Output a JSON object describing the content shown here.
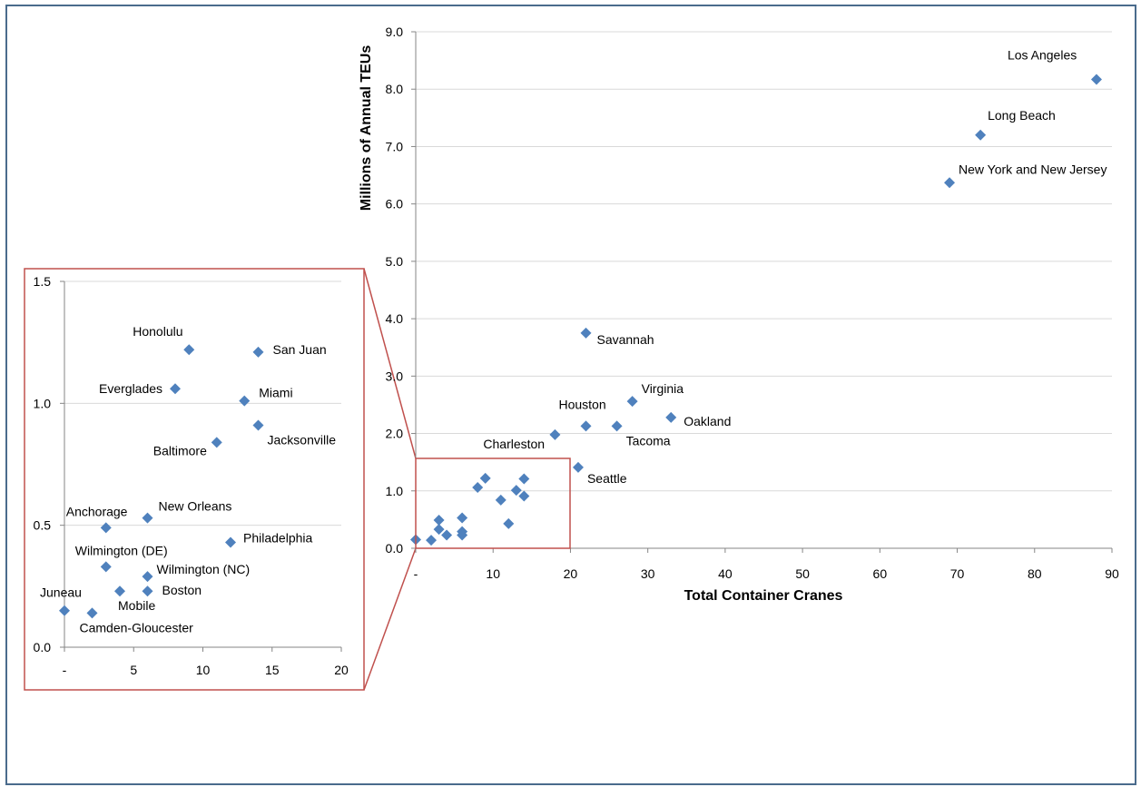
{
  "chart_data": [
    {
      "type": "scatter",
      "title": "",
      "xlabel": "Total Container Cranes",
      "ylabel": "Millions of Annual TEUs",
      "xlim": [
        0,
        90
      ],
      "ylim": [
        0,
        9
      ],
      "x_ticks": [
        "-",
        "10",
        "20",
        "30",
        "40",
        "50",
        "60",
        "70",
        "80",
        "90"
      ],
      "y_ticks": [
        "0.0",
        "1.0",
        "2.0",
        "3.0",
        "4.0",
        "5.0",
        "6.0",
        "7.0",
        "8.0",
        "9.0"
      ],
      "grid": "horizontal",
      "marker_color": "#4f81bd",
      "points": [
        {
          "label": "Los Angeles",
          "x": 88,
          "y": 8.17
        },
        {
          "label": "Long Beach",
          "x": 73,
          "y": 7.2
        },
        {
          "label": "New York and New Jersey",
          "x": 69,
          "y": 6.37
        },
        {
          "label": "Savannah",
          "x": 22,
          "y": 3.75
        },
        {
          "label": "Virginia",
          "x": 28,
          "y": 2.56
        },
        {
          "label": "Houston",
          "x": 22,
          "y": 2.13
        },
        {
          "label": "Oakland",
          "x": 33,
          "y": 2.28
        },
        {
          "label": "Tacoma",
          "x": 26,
          "y": 2.13
        },
        {
          "label": "Charleston",
          "x": 18,
          "y": 1.98
        },
        {
          "label": "Seattle",
          "x": 21,
          "y": 1.41
        },
        {
          "label": "",
          "x": 9,
          "y": 1.22
        },
        {
          "label": "",
          "x": 14,
          "y": 1.21
        },
        {
          "label": "",
          "x": 8,
          "y": 1.06
        },
        {
          "label": "",
          "x": 13,
          "y": 1.01
        },
        {
          "label": "",
          "x": 14,
          "y": 0.91
        },
        {
          "label": "",
          "x": 11,
          "y": 0.84
        },
        {
          "label": "",
          "x": 3,
          "y": 0.49
        },
        {
          "label": "",
          "x": 6,
          "y": 0.53
        },
        {
          "label": "",
          "x": 12,
          "y": 0.43
        },
        {
          "label": "",
          "x": 3,
          "y": 0.33
        },
        {
          "label": "",
          "x": 6,
          "y": 0.29
        },
        {
          "label": "",
          "x": 4,
          "y": 0.23
        },
        {
          "label": "",
          "x": 6,
          "y": 0.23
        },
        {
          "label": "",
          "x": 0,
          "y": 0.15
        },
        {
          "label": "",
          "x": 2,
          "y": 0.14
        }
      ]
    },
    {
      "type": "scatter",
      "title": "",
      "xlabel": "",
      "ylabel": "",
      "xlim": [
        0,
        20
      ],
      "ylim": [
        0,
        1.5
      ],
      "x_ticks": [
        "-",
        "5",
        "10",
        "15",
        "20"
      ],
      "y_ticks": [
        "0.0",
        "0.5",
        "1.0",
        "1.5"
      ],
      "grid": "horizontal",
      "marker_color": "#4f81bd",
      "points": [
        {
          "label": "Honolulu",
          "x": 9,
          "y": 1.22
        },
        {
          "label": "San Juan",
          "x": 14,
          "y": 1.21
        },
        {
          "label": "Everglades",
          "x": 8,
          "y": 1.06
        },
        {
          "label": "Miami",
          "x": 13,
          "y": 1.01
        },
        {
          "label": "Jacksonville",
          "x": 14,
          "y": 0.91
        },
        {
          "label": "Baltimore",
          "x": 11,
          "y": 0.84
        },
        {
          "label": "Anchorage",
          "x": 3,
          "y": 0.49
        },
        {
          "label": "New Orleans",
          "x": 6,
          "y": 0.53
        },
        {
          "label": "Philadelphia",
          "x": 12,
          "y": 0.43
        },
        {
          "label": "Wilmington (DE)",
          "x": 3,
          "y": 0.33
        },
        {
          "label": "Wilmington (NC)",
          "x": 6,
          "y": 0.29
        },
        {
          "label": "Mobile",
          "x": 4,
          "y": 0.23
        },
        {
          "label": "Boston",
          "x": 6,
          "y": 0.23
        },
        {
          "label": "Juneau",
          "x": 0,
          "y": 0.15
        },
        {
          "label": "Camden-Gloucester",
          "x": 2,
          "y": 0.14
        }
      ]
    }
  ]
}
